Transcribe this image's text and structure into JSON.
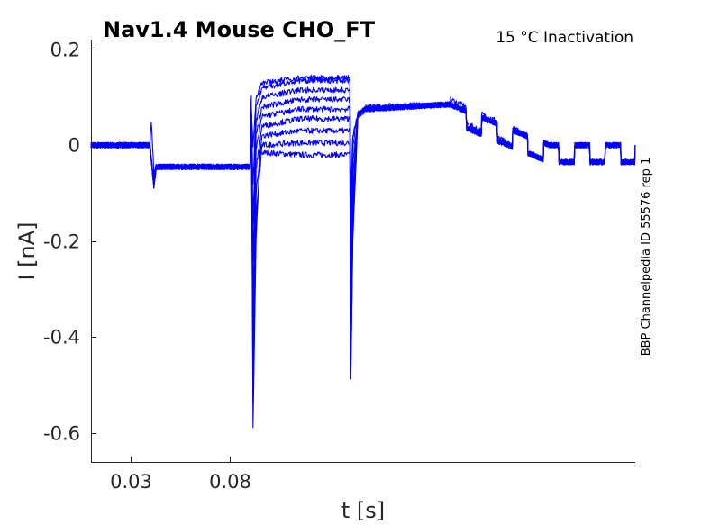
{
  "chart_data": {
    "type": "line",
    "title": "Nav1.4  Mouse  CHO_FT",
    "subtitle": "15 °C  Inactivation",
    "side_note": "BBP Channelpedia ID 55576 rep 1",
    "xlabel": "t [s]",
    "ylabel": "I [nA]",
    "xlim": [
      0.0103,
      0.283
    ],
    "ylim": [
      -0.66,
      0.22
    ],
    "x_ticks": [
      0.03,
      0.08
    ],
    "x_tick_labels": [
      "0.03",
      "0.08"
    ],
    "y_ticks": [
      0.2,
      0,
      -0.2,
      -0.4,
      -0.6
    ],
    "y_tick_labels": [
      "0.2",
      "0",
      "-0.2",
      "-0.4",
      "-0.6"
    ],
    "grid": false,
    "legend": "none",
    "series_color": "#0000ff",
    "series": [
      {
        "x": [
          0.0103,
          0.0398,
          0.0405,
          0.0417,
          0.0418,
          0.0422,
          0.043,
          0.09,
          0.0906,
          0.0915,
          0.093,
          0.095,
          0.115,
          0.14,
          0.1405,
          0.1415,
          0.144,
          0.148,
          0.16,
          0.19,
          0.1905,
          0.24,
          0.2405,
          0.283
        ],
        "values": [
          0.0,
          0.0,
          0.05,
          -0.045,
          -0.085,
          -0.05,
          -0.045,
          -0.045,
          0.1,
          -0.585,
          -0.2,
          -0.015,
          -0.02,
          -0.02,
          -0.49,
          -0.2,
          0.06,
          0.08,
          0.08,
          0.085,
          0.095,
          0.0,
          0.0,
          0.0
        ]
      },
      {
        "x": [
          0.0103,
          0.0398,
          0.0418,
          0.043,
          0.09,
          0.0906,
          0.0915,
          0.093,
          0.096,
          0.115,
          0.14,
          0.1405,
          0.1415,
          0.144,
          0.148,
          0.19,
          0.24,
          0.283
        ],
        "values": [
          0.0,
          0.0,
          -0.085,
          -0.045,
          -0.045,
          0.095,
          -0.54,
          -0.15,
          0.0,
          0.005,
          0.005,
          -0.47,
          -0.18,
          0.06,
          0.08,
          0.085,
          0.0,
          0.0
        ]
      },
      {
        "x": [
          0.0103,
          0.0398,
          0.0418,
          0.043,
          0.09,
          0.0906,
          0.0915,
          0.093,
          0.096,
          0.115,
          0.14,
          0.1405,
          0.1415,
          0.144,
          0.148,
          0.19,
          0.24,
          0.283
        ],
        "values": [
          0.0,
          0.0,
          -0.085,
          -0.045,
          -0.045,
          0.09,
          -0.47,
          -0.1,
          0.02,
          0.03,
          0.03,
          -0.43,
          -0.15,
          0.06,
          0.075,
          0.085,
          0.0,
          0.0
        ]
      },
      {
        "x": [
          0.0103,
          0.0398,
          0.0418,
          0.043,
          0.09,
          0.0906,
          0.0915,
          0.093,
          0.096,
          0.115,
          0.14,
          0.1405,
          0.1415,
          0.144,
          0.148,
          0.19,
          0.24,
          0.283
        ],
        "values": [
          0.0,
          0.0,
          -0.085,
          -0.045,
          -0.045,
          0.085,
          -0.4,
          -0.05,
          0.04,
          0.055,
          0.055,
          -0.38,
          -0.12,
          0.06,
          0.075,
          0.085,
          0.0,
          0.0
        ]
      },
      {
        "x": [
          0.0103,
          0.0398,
          0.0418,
          0.043,
          0.09,
          0.0906,
          0.0915,
          0.093,
          0.096,
          0.115,
          0.14,
          0.1405,
          0.1415,
          0.144,
          0.148,
          0.19,
          0.24,
          0.283
        ],
        "values": [
          0.0,
          0.0,
          -0.085,
          -0.045,
          -0.045,
          0.08,
          -0.32,
          -0.01,
          0.06,
          0.075,
          0.075,
          -0.32,
          -0.09,
          0.06,
          0.075,
          0.085,
          0.0,
          0.0
        ]
      },
      {
        "x": [
          0.0103,
          0.0398,
          0.0418,
          0.043,
          0.09,
          0.0906,
          0.0915,
          0.093,
          0.096,
          0.115,
          0.14,
          0.1405,
          0.1415,
          0.144,
          0.148,
          0.19,
          0.24,
          0.283
        ],
        "values": [
          0.0,
          0.0,
          -0.085,
          -0.045,
          -0.045,
          0.08,
          -0.24,
          0.02,
          0.08,
          0.095,
          0.095,
          -0.26,
          -0.06,
          0.065,
          0.075,
          0.085,
          0.0,
          0.0
        ]
      },
      {
        "x": [
          0.0103,
          0.0398,
          0.0418,
          0.043,
          0.09,
          0.0906,
          0.0915,
          0.093,
          0.096,
          0.115,
          0.14,
          0.1405,
          0.1415,
          0.144,
          0.148,
          0.19,
          0.24,
          0.283
        ],
        "values": [
          0.0,
          0.0,
          -0.085,
          -0.045,
          -0.045,
          0.08,
          -0.16,
          0.05,
          0.1,
          0.115,
          0.115,
          -0.2,
          -0.03,
          0.065,
          0.075,
          0.085,
          0.0,
          0.0
        ]
      },
      {
        "x": [
          0.0103,
          0.0398,
          0.0418,
          0.043,
          0.09,
          0.0906,
          0.0915,
          0.093,
          0.096,
          0.115,
          0.14,
          0.1405,
          0.1415,
          0.144,
          0.148,
          0.19,
          0.24,
          0.283
        ],
        "values": [
          0.0,
          0.0,
          -0.085,
          -0.045,
          -0.045,
          0.08,
          -0.08,
          0.08,
          0.12,
          0.135,
          0.135,
          -0.15,
          0.0,
          0.065,
          0.075,
          0.085,
          0.0,
          0.0
        ]
      },
      {
        "x": [
          0.0103,
          0.0398,
          0.0418,
          0.043,
          0.09,
          0.0906,
          0.0915,
          0.093,
          0.096,
          0.115,
          0.14,
          0.1405,
          0.1415,
          0.144,
          0.148,
          0.19,
          0.24,
          0.283
        ],
        "values": [
          0.0,
          0.0,
          -0.085,
          -0.045,
          -0.045,
          0.08,
          0.0,
          0.1,
          0.13,
          0.14,
          0.14,
          -0.1,
          0.02,
          0.065,
          0.075,
          0.085,
          0.0,
          0.0
        ]
      }
    ]
  }
}
